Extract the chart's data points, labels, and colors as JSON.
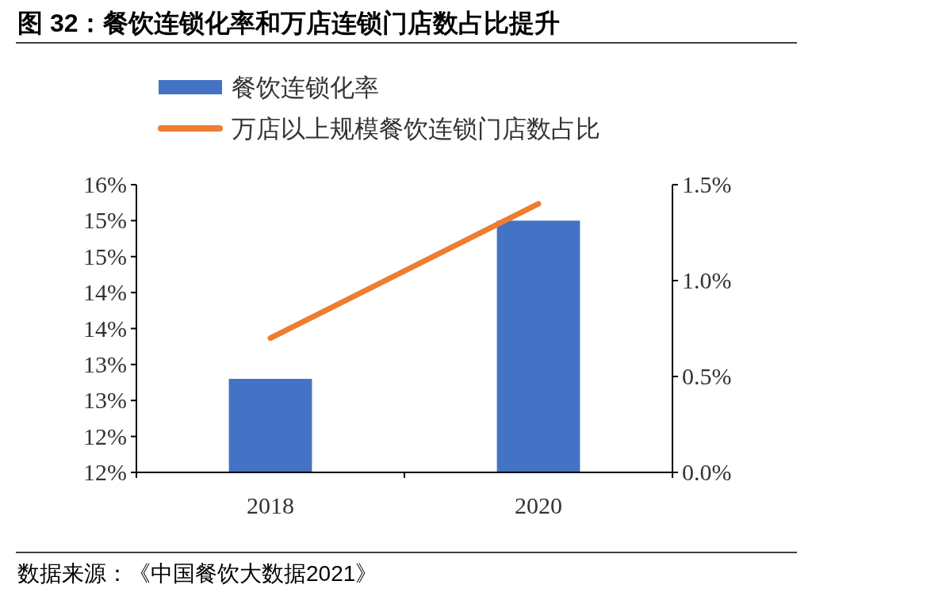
{
  "chart_data": {
    "type": "bar",
    "title": "图 32：餐饮连锁化率和万店连锁门店数占比提升",
    "categories": [
      "2018",
      "2020"
    ],
    "series": [
      {
        "name": "餐饮连锁化率",
        "color": "#4472c4",
        "values": [
          13.3,
          15.5
        ]
      },
      {
        "name": "万店以上规模餐饮连锁门店数占比",
        "type": "line",
        "axis": "y2",
        "color": "#ed7d31",
        "values": [
          0.7,
          1.4
        ]
      }
    ],
    "ylim": [
      12,
      16
    ],
    "yticks": [
      {
        "value": 12,
        "label": "12%"
      },
      {
        "value": 12.5,
        "label": "12%"
      },
      {
        "value": 13,
        "label": "13%"
      },
      {
        "value": 13.5,
        "label": "13%"
      },
      {
        "value": 14,
        "label": "14%"
      },
      {
        "value": 14.5,
        "label": "14%"
      },
      {
        "value": 15,
        "label": "15%"
      },
      {
        "value": 15.5,
        "label": "15%"
      },
      {
        "value": 16,
        "label": "16%"
      }
    ],
    "y2lim": [
      0,
      1.5
    ],
    "y2ticks": [
      {
        "value": 0,
        "label": "0.0%"
      },
      {
        "value": 0.5,
        "label": "0.5%"
      },
      {
        "value": 1,
        "label": "1.0%"
      },
      {
        "value": 1.5,
        "label": "1.5%"
      }
    ],
    "legend": "top left",
    "annotations": [
      "数据来源：《中国餐饮大数据2021》"
    ]
  }
}
